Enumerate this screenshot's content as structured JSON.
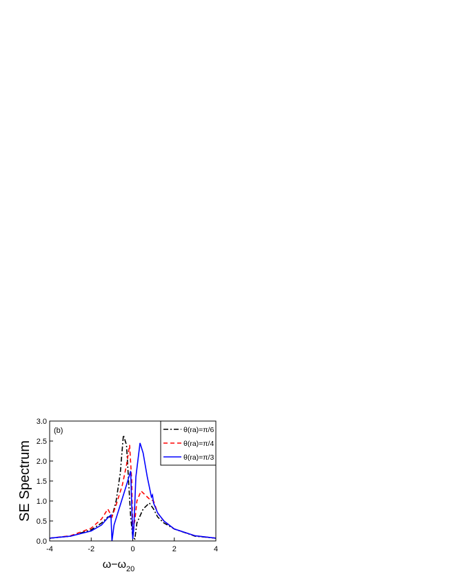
{
  "chart_data": {
    "type": "line",
    "y_label": "SE Spectrum",
    "x_label": "ω−ω",
    "x_label_sub": "20",
    "annotation": "(b)",
    "xlim": [
      -4,
      4
    ],
    "xticks": [
      -4,
      -2,
      0,
      2,
      4
    ],
    "ylim": [
      0,
      3
    ],
    "yticks": [
      {
        "value": 0,
        "label": "0.0"
      },
      {
        "value": 0.5,
        "label": "0.5"
      },
      {
        "value": 1,
        "label": "1.0"
      },
      {
        "value": 1.5,
        "label": "1.5"
      },
      {
        "value": 2,
        "label": "2.0"
      },
      {
        "value": 2.5,
        "label": "2.5"
      },
      {
        "value": 3,
        "label": "3.0"
      }
    ],
    "legend": "upper right",
    "series": [
      {
        "name": "θ(ra)=π/6",
        "color": "#000000",
        "dash": "7 3 2 3",
        "x": [
          -4,
          -3,
          -2,
          -1.5,
          -1.2,
          -1,
          -0.8,
          -0.6,
          -0.45,
          -0.3,
          -0.2,
          -0.1,
          0,
          0.1,
          0.2,
          0.5,
          0.8,
          1,
          1.2,
          1.5,
          2,
          3,
          4
        ],
        "values": [
          0.07,
          0.12,
          0.28,
          0.45,
          0.6,
          0.6,
          1.0,
          1.7,
          2.65,
          2.4,
          1.5,
          0.6,
          0.1,
          0.05,
          0.45,
          0.8,
          0.95,
          0.8,
          0.6,
          0.45,
          0.3,
          0.12,
          0.07
        ]
      },
      {
        "name": "θ(ra)=π/4",
        "color": "#ff0000",
        "dash": "6 4",
        "x": [
          -4,
          -3,
          -2,
          -1.5,
          -1.2,
          -1,
          -0.8,
          -0.5,
          -0.3,
          -0.15,
          -0.05,
          0,
          0.1,
          0.2,
          0.4,
          0.6,
          0.8,
          1,
          1.2,
          1.5,
          2,
          3,
          4
        ],
        "values": [
          0.07,
          0.13,
          0.32,
          0.55,
          0.8,
          0.6,
          0.9,
          1.4,
          1.9,
          2.4,
          1.5,
          0.3,
          0.5,
          1.0,
          1.25,
          1.15,
          1.05,
          1.0,
          0.7,
          0.5,
          0.3,
          0.13,
          0.07
        ]
      },
      {
        "name": "θ(ra)=π/3",
        "color": "#0000ff",
        "dash": "",
        "x": [
          -4,
          -3,
          -2,
          -1.5,
          -1.2,
          -1.05,
          -1,
          -0.9,
          -0.6,
          -0.3,
          -0.1,
          0,
          0.05,
          0.15,
          0.35,
          0.5,
          0.7,
          0.9,
          0.95,
          1,
          1.2,
          1.5,
          2,
          3,
          4
        ],
        "values": [
          0.07,
          0.12,
          0.25,
          0.4,
          0.58,
          0.65,
          0.0,
          0.4,
          0.9,
          1.4,
          1.75,
          0.05,
          0.3,
          1.6,
          2.45,
          2.2,
          1.6,
          1.1,
          1.15,
          0.95,
          0.7,
          0.5,
          0.3,
          0.13,
          0.07
        ]
      }
    ]
  }
}
